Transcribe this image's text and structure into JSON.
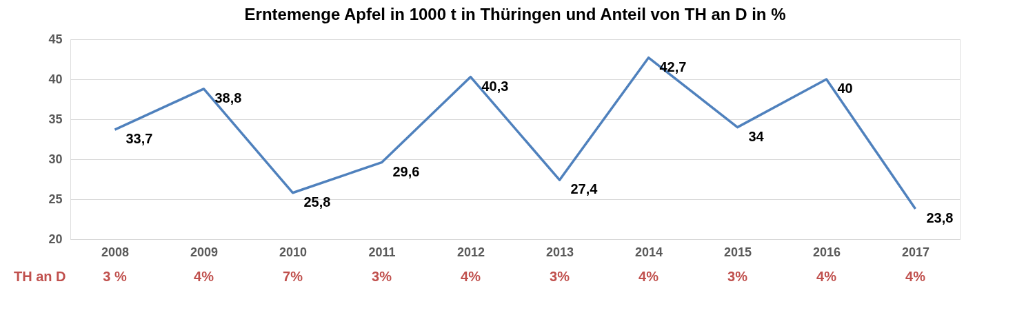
{
  "chart_data": {
    "type": "line",
    "title": "Erntemenge Apfel in 1000 t in Thüringen und Anteil von TH an D in %",
    "categories": [
      "2008",
      "2009",
      "2010",
      "2011",
      "2012",
      "2013",
      "2014",
      "2015",
      "2016",
      "2017"
    ],
    "series": [
      {
        "color": "#4f81bd",
        "values": [
          33.7,
          38.8,
          25.8,
          29.6,
          40.3,
          27.4,
          42.7,
          34,
          40,
          23.8
        ],
        "value_labels": [
          "33,7",
          "38,8",
          "25,8",
          "29,6",
          "40,3",
          "27,4",
          "42,7",
          "34",
          "40",
          "23,8"
        ]
      }
    ],
    "ylim": [
      20,
      45
    ],
    "yticks": [
      20,
      25,
      30,
      35,
      40,
      45
    ],
    "grid": "y",
    "marker": "none",
    "line_style": "solid",
    "annotations": [
      "TH an D",
      "3 %",
      "4%",
      "7%",
      "3%",
      "4%",
      "3%",
      "4%",
      "3%",
      "4%",
      "4%"
    ]
  }
}
